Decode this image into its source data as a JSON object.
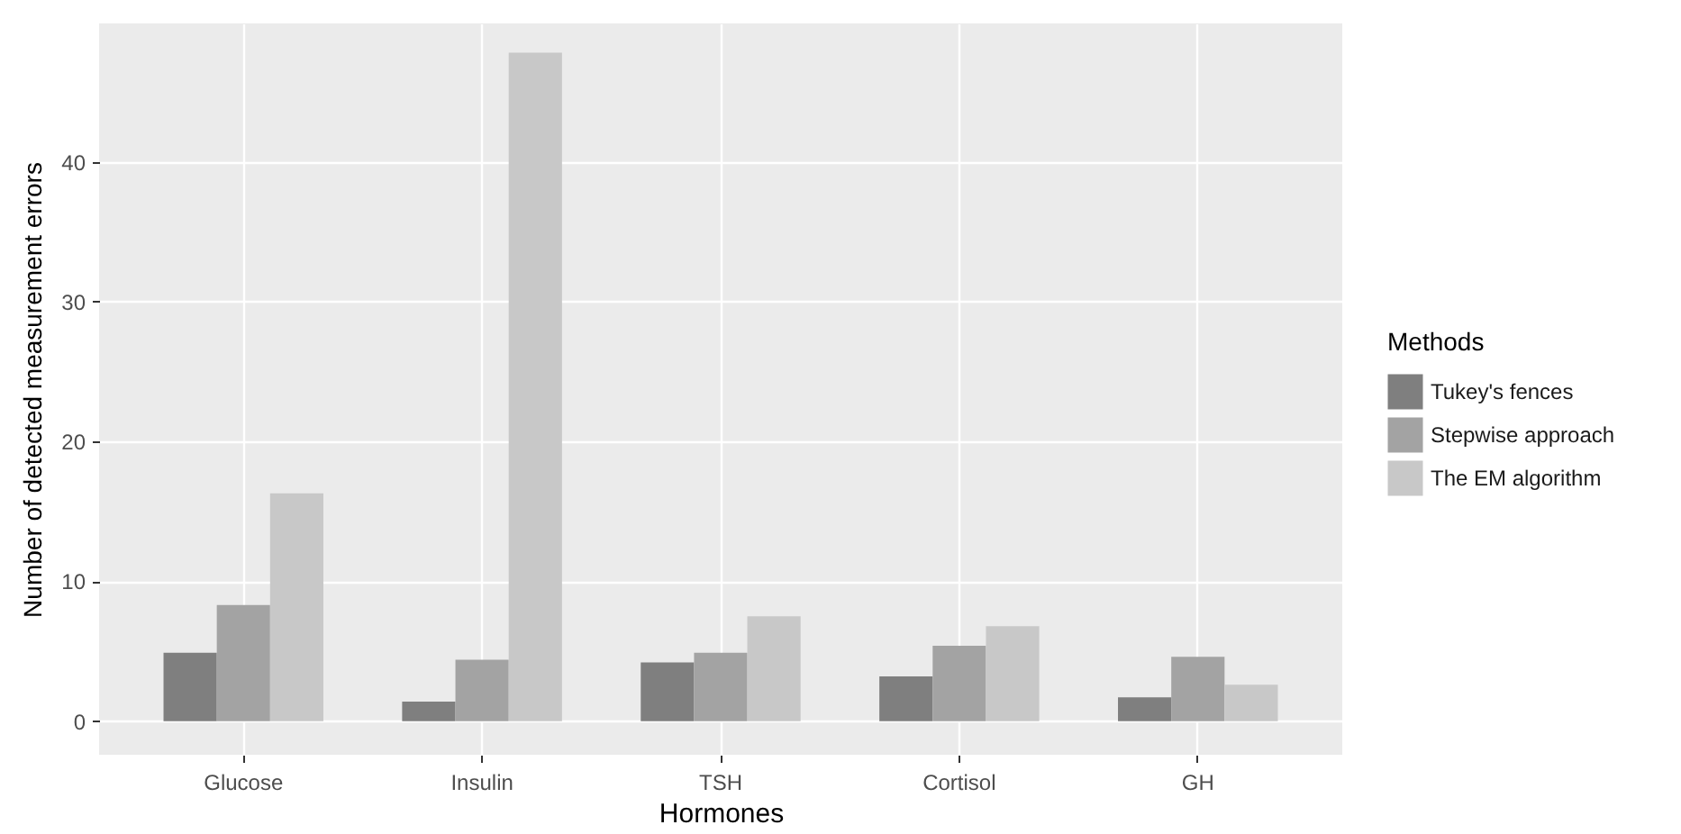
{
  "chart_data": {
    "type": "bar",
    "xlabel": "Hormones",
    "ylabel": "Number of detected measurement errors",
    "legend_title": "Methods",
    "categories": [
      "Glucose",
      "Insulin",
      "TSH",
      "Cortisol",
      "GH"
    ],
    "series": [
      {
        "name": "Tukey's fences",
        "color": "#7f7f7f",
        "values": [
          4.9,
          1.4,
          4.2,
          3.2,
          1.7
        ]
      },
      {
        "name": "Stepwise approach",
        "color": "#a3a3a3",
        "values": [
          8.3,
          4.4,
          4.9,
          5.4,
          4.6
        ]
      },
      {
        "name": "The EM algorithm",
        "color": "#c8c8c8",
        "values": [
          16.3,
          47.8,
          7.5,
          6.8,
          2.6
        ]
      }
    ],
    "ylim": [
      -2.4,
      49.9
    ],
    "yticks": [
      0,
      10,
      20,
      30,
      40
    ],
    "grid": true,
    "legend": "right"
  }
}
